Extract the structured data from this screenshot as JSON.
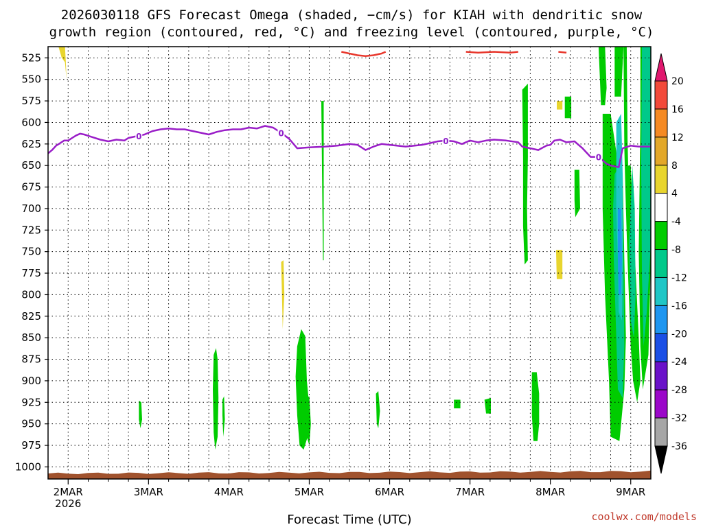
{
  "chart_data": {
    "type": "heatmap",
    "title_lines": [
      "2026030118 GFS Forecast Omega (shaded, −cm/s) for KIAH with dendritic snow",
      "growth region (contoured, red, °C) and freezing level (contoured, purple, °C)"
    ],
    "xlabel": "Forecast Time (UTC)",
    "ylabel": "",
    "x_ticks": [
      {
        "day": 0,
        "label": "2MAR",
        "sub": "2026"
      },
      {
        "day": 1,
        "label": "3MAR",
        "sub": ""
      },
      {
        "day": 2,
        "label": "4MAR",
        "sub": ""
      },
      {
        "day": 3,
        "label": "5MAR",
        "sub": ""
      },
      {
        "day": 4,
        "label": "6MAR",
        "sub": ""
      },
      {
        "day": 5,
        "label": "7MAR",
        "sub": ""
      },
      {
        "day": 6,
        "label": "8MAR",
        "sub": ""
      },
      {
        "day": 7,
        "label": "9MAR",
        "sub": ""
      }
    ],
    "x_range": [
      -0.25,
      7.25
    ],
    "y_ticks": [
      525,
      550,
      575,
      600,
      625,
      650,
      675,
      700,
      725,
      750,
      775,
      800,
      825,
      850,
      875,
      900,
      925,
      950,
      975,
      1000
    ],
    "y_range": [
      512,
      1014
    ],
    "grid": true,
    "colorbar": {
      "labels": [
        "20",
        "16",
        "12",
        "8",
        "4",
        "-4",
        "-8",
        "-12",
        "-16",
        "-20",
        "-24",
        "-28",
        "-32",
        "-36"
      ],
      "colors": [
        "#e0186e",
        "#f24a3a",
        "#f58a23",
        "#e3a829",
        "#e8d52e",
        "#ffffff",
        "#00cc00",
        "#00c98a",
        "#1fc6c6",
        "#1e96f0",
        "#1a4fe6",
        "#6a12c9",
        "#9b07c9",
        "#a6a6a6",
        "#000000"
      ]
    },
    "freezing_level": {
      "color": "#9a1ec8",
      "contour_label": "0",
      "label_days": [
        0.88,
        2.65,
        4.7,
        6.6
      ],
      "points": [
        [
          -0.25,
          636
        ],
        [
          -0.2,
          632
        ],
        [
          -0.15,
          627
        ],
        [
          -0.1,
          624
        ],
        [
          -0.05,
          621
        ],
        [
          0.0,
          621
        ],
        [
          0.05,
          618
        ],
        [
          0.1,
          615
        ],
        [
          0.15,
          613
        ],
        [
          0.2,
          614
        ],
        [
          0.3,
          617
        ],
        [
          0.4,
          620
        ],
        [
          0.5,
          622
        ],
        [
          0.6,
          620
        ],
        [
          0.7,
          621
        ],
        [
          0.75,
          618
        ],
        [
          0.85,
          616
        ],
        [
          0.95,
          614
        ],
        [
          1.05,
          610
        ],
        [
          1.15,
          608
        ],
        [
          1.25,
          607
        ],
        [
          1.35,
          608
        ],
        [
          1.45,
          608
        ],
        [
          1.55,
          610
        ],
        [
          1.65,
          612
        ],
        [
          1.75,
          614
        ],
        [
          1.85,
          611
        ],
        [
          1.95,
          609
        ],
        [
          2.05,
          608
        ],
        [
          2.15,
          608
        ],
        [
          2.25,
          606
        ],
        [
          2.35,
          607
        ],
        [
          2.45,
          604
        ],
        [
          2.55,
          606
        ],
        [
          2.65,
          612
        ],
        [
          2.75,
          619
        ],
        [
          2.85,
          630
        ],
        [
          3.0,
          629
        ],
        [
          3.2,
          628
        ],
        [
          3.35,
          627
        ],
        [
          3.5,
          625
        ],
        [
          3.6,
          626
        ],
        [
          3.7,
          632
        ],
        [
          3.8,
          628
        ],
        [
          3.9,
          625
        ],
        [
          4.0,
          626
        ],
        [
          4.2,
          628
        ],
        [
          4.4,
          626
        ],
        [
          4.5,
          624
        ],
        [
          4.6,
          622
        ],
        [
          4.7,
          621
        ],
        [
          4.8,
          622
        ],
        [
          4.9,
          625
        ],
        [
          5.0,
          621
        ],
        [
          5.1,
          623
        ],
        [
          5.2,
          621
        ],
        [
          5.3,
          620
        ],
        [
          5.45,
          621
        ],
        [
          5.6,
          623
        ],
        [
          5.65,
          628
        ],
        [
          5.75,
          630
        ],
        [
          5.85,
          632
        ],
        [
          5.95,
          627
        ],
        [
          6.0,
          626
        ],
        [
          6.05,
          621
        ],
        [
          6.12,
          620
        ],
        [
          6.2,
          623
        ],
        [
          6.3,
          622
        ],
        [
          6.4,
          630
        ],
        [
          6.5,
          640
        ],
        [
          6.6,
          640
        ],
        [
          6.7,
          648
        ],
        [
          6.75,
          650
        ],
        [
          6.85,
          652
        ],
        [
          6.9,
          630
        ],
        [
          7.0,
          627
        ],
        [
          7.1,
          628
        ],
        [
          7.25,
          628
        ]
      ]
    },
    "dendritic_contours": {
      "color": "#e8382d",
      "segments": [
        [
          [
            3.4,
            518
          ],
          [
            3.5,
            520
          ],
          [
            3.6,
            522
          ],
          [
            3.7,
            523
          ],
          [
            3.8,
            522
          ],
          [
            3.9,
            520
          ],
          [
            3.95,
            518
          ]
        ],
        [
          [
            4.95,
            518
          ],
          [
            5.1,
            519
          ],
          [
            5.3,
            518
          ],
          [
            5.5,
            519
          ],
          [
            5.6,
            518
          ]
        ],
        [
          [
            6.1,
            518
          ],
          [
            6.2,
            519
          ]
        ]
      ]
    },
    "omega_regions": [
      {
        "color": "#00cc00",
        "points": [
          [
            1.81,
            870
          ],
          [
            1.84,
            862
          ],
          [
            1.86,
            875
          ],
          [
            1.87,
            920
          ],
          [
            1.86,
            965
          ],
          [
            1.83,
            980
          ],
          [
            1.81,
            960
          ],
          [
            1.8,
            910
          ]
        ]
      },
      {
        "color": "#00cc00",
        "points": [
          [
            1.92,
            922
          ],
          [
            1.94,
            918
          ],
          [
            1.95,
            945
          ],
          [
            1.93,
            965
          ],
          [
            1.92,
            940
          ]
        ]
      },
      {
        "color": "#00cc00",
        "points": [
          [
            0.88,
            923
          ],
          [
            0.91,
            925
          ],
          [
            0.92,
            945
          ],
          [
            0.9,
            955
          ],
          [
            0.88,
            945
          ]
        ]
      },
      {
        "color": "#00cc00",
        "points": [
          [
            2.85,
            860
          ],
          [
            2.9,
            840
          ],
          [
            2.95,
            848
          ],
          [
            2.97,
            900
          ],
          [
            3.0,
            930
          ],
          [
            2.98,
            965
          ],
          [
            2.93,
            980
          ],
          [
            2.88,
            975
          ],
          [
            2.85,
            940
          ],
          [
            2.83,
            895
          ]
        ]
      },
      {
        "color": "#00cc00",
        "points": [
          [
            2.96,
            920
          ],
          [
            3.0,
            918
          ],
          [
            3.02,
            950
          ],
          [
            3.0,
            975
          ],
          [
            2.97,
            965
          ]
        ]
      },
      {
        "color": "#00cc00",
        "points": [
          [
            3.83,
            915
          ],
          [
            3.86,
            912
          ],
          [
            3.88,
            935
          ],
          [
            3.86,
            955
          ],
          [
            3.84,
            950
          ]
        ]
      },
      {
        "color": "#00cc00",
        "points": [
          [
            4.8,
            922
          ],
          [
            4.88,
            922
          ],
          [
            4.88,
            932
          ],
          [
            4.8,
            932
          ]
        ]
      },
      {
        "color": "#00cc00",
        "points": [
          [
            5.18,
            922
          ],
          [
            5.26,
            920
          ],
          [
            5.26,
            938
          ],
          [
            5.2,
            938
          ]
        ]
      },
      {
        "color": "#00cc00",
        "points": [
          [
            5.77,
            890
          ],
          [
            5.83,
            890
          ],
          [
            5.86,
            915
          ],
          [
            5.86,
            950
          ],
          [
            5.84,
            970
          ],
          [
            5.79,
            970
          ],
          [
            5.77,
            940
          ]
        ]
      },
      {
        "color": "#00cc00",
        "points": [
          [
            5.65,
            562
          ],
          [
            5.72,
            555
          ],
          [
            5.72,
            640
          ],
          [
            5.71,
            700
          ],
          [
            5.72,
            760
          ],
          [
            5.68,
            765
          ],
          [
            5.66,
            720
          ],
          [
            5.66,
            640
          ]
        ]
      },
      {
        "color": "#00cc00",
        "points": [
          [
            6.18,
            570
          ],
          [
            6.26,
            570
          ],
          [
            6.26,
            595
          ],
          [
            6.18,
            595
          ]
        ]
      },
      {
        "color": "#00cc00",
        "points": [
          [
            6.3,
            655
          ],
          [
            6.36,
            655
          ],
          [
            6.37,
            700
          ],
          [
            6.31,
            710
          ],
          [
            6.3,
            690
          ]
        ]
      },
      {
        "color": "#00cc00",
        "points": [
          [
            6.6,
            512
          ],
          [
            6.68,
            512
          ],
          [
            6.7,
            560
          ],
          [
            6.68,
            580
          ],
          [
            6.63,
            580
          ]
        ]
      },
      {
        "color": "#00cc00",
        "points": [
          [
            6.65,
            590
          ],
          [
            6.75,
            590
          ],
          [
            6.83,
            640
          ],
          [
            6.9,
            660
          ],
          [
            6.92,
            760
          ],
          [
            6.94,
            850
          ],
          [
            6.92,
            910
          ],
          [
            6.86,
            970
          ],
          [
            6.75,
            965
          ],
          [
            6.73,
            900
          ],
          [
            6.68,
            800
          ],
          [
            6.65,
            700
          ]
        ]
      },
      {
        "color": "#00cc00",
        "points": [
          [
            6.8,
            512
          ],
          [
            6.91,
            512
          ],
          [
            6.88,
            570
          ],
          [
            6.8,
            570
          ]
        ]
      },
      {
        "color": "#00cc00",
        "points": [
          [
            6.91,
            512
          ],
          [
            6.95,
            512
          ],
          [
            6.96,
            620
          ],
          [
            6.98,
            700
          ],
          [
            7.02,
            800
          ],
          [
            7.04,
            860
          ],
          [
            7.0,
            860
          ],
          [
            6.96,
            760
          ],
          [
            6.94,
            700
          ],
          [
            6.92,
            630
          ]
        ]
      },
      {
        "color": "#00cc00",
        "points": [
          [
            6.95,
            650
          ],
          [
            7.0,
            650
          ],
          [
            7.1,
            850
          ],
          [
            7.12,
            900
          ],
          [
            7.08,
            925
          ],
          [
            7.03,
            900
          ],
          [
            7.0,
            860
          ]
        ]
      },
      {
        "color": "#00cc00",
        "points": [
          [
            7.12,
            512
          ],
          [
            7.25,
            512
          ],
          [
            7.25,
            760
          ],
          [
            7.22,
            870
          ],
          [
            7.15,
            910
          ],
          [
            7.12,
            860
          ],
          [
            7.1,
            750
          ],
          [
            7.12,
            600
          ]
        ]
      },
      {
        "color": "#00c98a",
        "points": [
          [
            6.8,
            660
          ],
          [
            6.86,
            650
          ],
          [
            6.9,
            680
          ],
          [
            6.91,
            760
          ],
          [
            6.92,
            860
          ],
          [
            6.9,
            920
          ],
          [
            6.84,
            910
          ],
          [
            6.82,
            850
          ],
          [
            6.79,
            760
          ],
          [
            6.78,
            700
          ]
        ]
      },
      {
        "color": "#00c98a",
        "points": [
          [
            7.02,
            650
          ],
          [
            7.05,
            700
          ],
          [
            7.06,
            800
          ],
          [
            7.04,
            850
          ],
          [
            7.0,
            830
          ],
          [
            6.98,
            740
          ]
        ]
      },
      {
        "color": "#00c98a",
        "points": [
          [
            7.14,
            512
          ],
          [
            7.25,
            512
          ],
          [
            7.25,
            740
          ],
          [
            7.2,
            820
          ],
          [
            7.16,
            860
          ],
          [
            7.14,
            780
          ],
          [
            7.13,
            650
          ]
        ]
      },
      {
        "color": "#1fc6c6",
        "points": [
          [
            6.82,
            600
          ],
          [
            6.88,
            590
          ],
          [
            6.9,
            660
          ],
          [
            6.9,
            760
          ],
          [
            6.89,
            830
          ],
          [
            6.85,
            820
          ],
          [
            6.84,
            760
          ],
          [
            6.82,
            700
          ]
        ]
      },
      {
        "color": "#1e96f0",
        "points": [
          [
            6.84,
            700
          ],
          [
            6.88,
            700
          ],
          [
            6.89,
            760
          ],
          [
            6.88,
            800
          ],
          [
            6.85,
            800
          ],
          [
            6.84,
            760
          ]
        ]
      },
      {
        "color": "#e8d52e",
        "points": [
          [
            -0.12,
            512
          ],
          [
            -0.04,
            512
          ],
          [
            -0.03,
            528
          ],
          [
            -0.02,
            550
          ],
          [
            -0.04,
            530
          ],
          [
            -0.08,
            525
          ]
        ]
      },
      {
        "color": "#e8d52e",
        "points": [
          [
            6.08,
            575
          ],
          [
            6.15,
            575
          ],
          [
            6.15,
            585
          ],
          [
            6.08,
            585
          ]
        ]
      },
      {
        "color": "#e8d52e",
        "points": [
          [
            6.07,
            748
          ],
          [
            6.15,
            748
          ],
          [
            6.15,
            782
          ],
          [
            6.08,
            782
          ]
        ]
      },
      {
        "color": "#e8d52e",
        "points": [
          [
            2.65,
            762
          ],
          [
            2.68,
            760
          ],
          [
            2.69,
            800
          ],
          [
            2.67,
            840
          ],
          [
            2.66,
            800
          ]
        ]
      },
      {
        "color": "#00cc00",
        "points": [
          [
            3.15,
            575
          ],
          [
            3.18,
            575
          ],
          [
            3.18,
            760
          ],
          [
            3.17,
            760
          ]
        ]
      }
    ],
    "terrain": {
      "color": "#a0522d"
    }
  },
  "credit": "coolwx.com/models"
}
